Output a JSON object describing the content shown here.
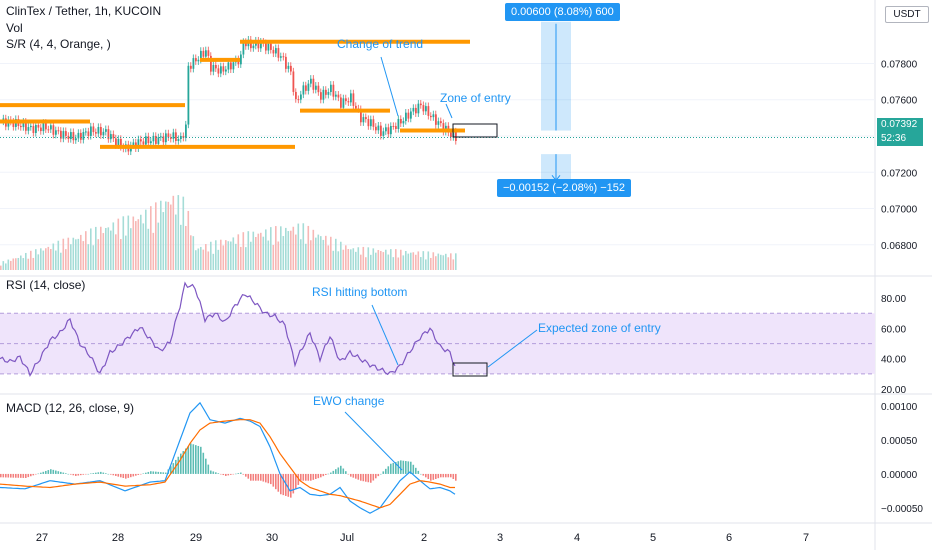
{
  "header": {
    "symbol": "ClinTex / Tether, 1h, KUCOIN",
    "vol": "Vol",
    "sr": "S/R (4, 4, Orange, )",
    "rsi": "RSI (14, close)",
    "macd": "MACD (12, 26, close, 9)"
  },
  "unit": "USDT",
  "price_tag": {
    "price": "0.07392",
    "countdown": "52:36"
  },
  "measure": {
    "up": "0.00600 (8.08%) 600",
    "down": "−0.00152 (−2.08%) −152"
  },
  "annotations": {
    "trend": "Change of trend",
    "entry": "Zone of entry",
    "rsi": "RSI hitting bottom",
    "expected": "Expected zone of entry",
    "ewo": "EWO change"
  },
  "colors": {
    "up": "#26a69a",
    "down": "#ef5350",
    "sr": "#ff9800",
    "rsi": "#7e57c2",
    "rsi_band": "#efe4fb",
    "macd": "#2196f3",
    "signal": "#ff6d00",
    "accent": "#2196f3"
  },
  "chart_data": [
    {
      "type": "candlestick",
      "title": "ClinTex / Tether, 1h, KUCOIN",
      "x_labels": [
        "27",
        "28",
        "29",
        "30",
        "Jul",
        "2",
        "3",
        "4",
        "5",
        "6",
        "7"
      ],
      "y_ticks": [
        "0.07800",
        "0.07600",
        "0.07400",
        "0.07200",
        "0.07000",
        "0.06800"
      ],
      "ylim": [
        0.0665,
        0.0815
      ],
      "last_price": 0.07392,
      "close_path": [
        [
          0,
          0.0748
        ],
        [
          6,
          0.0747
        ],
        [
          12,
          0.0744
        ],
        [
          18,
          0.0745
        ],
        [
          24,
          0.0741
        ],
        [
          30,
          0.0739
        ],
        [
          36,
          0.0743
        ],
        [
          42,
          0.0742
        ],
        [
          46,
          0.0737
        ],
        [
          50,
          0.0733
        ],
        [
          56,
          0.0737
        ],
        [
          62,
          0.0738
        ],
        [
          68,
          0.074
        ],
        [
          72,
          0.0738
        ],
        [
          74,
          0.0745
        ],
        [
          75,
          0.0778
        ],
        [
          78,
          0.0782
        ],
        [
          82,
          0.0787
        ],
        [
          84,
          0.0778
        ],
        [
          88,
          0.0776
        ],
        [
          92,
          0.0779
        ],
        [
          96,
          0.0783
        ],
        [
          97,
          0.0792
        ],
        [
          100,
          0.079
        ],
        [
          104,
          0.0791
        ],
        [
          108,
          0.0788
        ],
        [
          112,
          0.0784
        ],
        [
          116,
          0.0775
        ],
        [
          118,
          0.0758
        ],
        [
          120,
          0.0764
        ],
        [
          124,
          0.077
        ],
        [
          128,
          0.0762
        ],
        [
          132,
          0.0766
        ],
        [
          136,
          0.0758
        ],
        [
          140,
          0.0761
        ],
        [
          144,
          0.075
        ],
        [
          148,
          0.0747
        ],
        [
          152,
          0.0742
        ],
        [
          156,
          0.0744
        ],
        [
          160,
          0.0748
        ],
        [
          164,
          0.0753
        ],
        [
          168,
          0.0757
        ],
        [
          172,
          0.0751
        ],
        [
          176,
          0.0746
        ],
        [
          180,
          0.0741
        ],
        [
          182,
          0.0739
        ]
      ],
      "volume": [
        [
          0,
          1
        ],
        [
          60,
          8
        ],
        [
          68,
          10
        ],
        [
          74,
          9
        ],
        [
          78,
          3
        ],
        [
          100,
          5
        ],
        [
          120,
          6
        ],
        [
          140,
          3
        ],
        [
          186,
          2
        ]
      ],
      "sr_levels": [
        {
          "price": 0.0757,
          "x": [
            0,
            74
          ]
        },
        {
          "price": 0.0748,
          "x": [
            0,
            36
          ]
        },
        {
          "price": 0.0734,
          "x": [
            40,
            118
          ]
        },
        {
          "price": 0.0782,
          "x": [
            80,
            96
          ]
        },
        {
          "price": 0.0792,
          "x": [
            96,
            188
          ]
        },
        {
          "price": 0.0754,
          "x": [
            120,
            156
          ]
        },
        {
          "price": 0.0743,
          "x": [
            160,
            186
          ]
        }
      ],
      "measure_levels": {
        "up": [
          0.0743,
          0.0803
        ],
        "down": [
          0.073,
          0.0715
        ]
      }
    },
    {
      "type": "line",
      "title": "RSI (14, close)",
      "y_ticks": [
        "80.00",
        "60.00",
        "40.00",
        "20.00"
      ],
      "ylim": [
        18,
        92
      ],
      "band": [
        30,
        70
      ],
      "series": [
        {
          "values": [
            [
              0,
              40
            ],
            [
              4,
              38
            ],
            [
              8,
              41
            ],
            [
              12,
              30
            ],
            [
              16,
              40
            ],
            [
              20,
              52
            ],
            [
              24,
              57
            ],
            [
              28,
              66
            ],
            [
              32,
              50
            ],
            [
              36,
              42
            ],
            [
              40,
              30
            ],
            [
              44,
              44
            ],
            [
              48,
              49
            ],
            [
              52,
              55
            ],
            [
              56,
              61
            ],
            [
              60,
              53
            ],
            [
              64,
              45
            ],
            [
              68,
              51
            ],
            [
              72,
              75
            ],
            [
              74,
              89
            ],
            [
              78,
              87
            ],
            [
              82,
              66
            ],
            [
              86,
              70
            ],
            [
              90,
              64
            ],
            [
              94,
              75
            ],
            [
              98,
              83
            ],
            [
              102,
              77
            ],
            [
              106,
              70
            ],
            [
              110,
              68
            ],
            [
              114,
              62
            ],
            [
              118,
              37
            ],
            [
              120,
              44
            ],
            [
              124,
              57
            ],
            [
              128,
              40
            ],
            [
              132,
              55
            ],
            [
              136,
              38
            ],
            [
              140,
              44
            ],
            [
              144,
              40
            ],
            [
              148,
              36
            ],
            [
              152,
              33
            ],
            [
              156,
              30
            ],
            [
              160,
              35
            ],
            [
              164,
              45
            ],
            [
              168,
              54
            ],
            [
              172,
              60
            ],
            [
              176,
              48
            ],
            [
              180,
              44
            ],
            [
              182,
              35
            ]
          ]
        }
      ]
    },
    {
      "type": "bar",
      "title": "MACD (12, 26, close, 9)",
      "y_ticks": [
        "0.00100",
        "0.00050",
        "0.00000",
        "−0.00050"
      ],
      "ylim": [
        -0.00068,
        0.00115
      ],
      "series": [
        {
          "values": [
            [
              0,
              -0.0002
            ],
            [
              10,
              -0.00022
            ],
            [
              20,
              -0.0001
            ],
            [
              30,
              -0.00015
            ],
            [
              40,
              -0.0001
            ],
            [
              50,
              -0.00025
            ],
            [
              60,
              -0.00012
            ],
            [
              66,
              -0.0001
            ],
            [
              72,
              0.0005
            ],
            [
              76,
              0.0009
            ],
            [
              80,
              0.00105
            ],
            [
              84,
              0.0008
            ],
            [
              90,
              0.00075
            ],
            [
              96,
              0.00082
            ],
            [
              100,
              0.00078
            ],
            [
              104,
              0.0007
            ],
            [
              108,
              0.0004
            ],
            [
              112,
              0.0
            ],
            [
              116,
              -0.00025
            ],
            [
              120,
              -0.0002
            ],
            [
              124,
              -0.0003
            ],
            [
              128,
              -0.00032
            ],
            [
              132,
              -0.0003
            ],
            [
              136,
              -0.0002
            ],
            [
              140,
              -0.0004
            ],
            [
              144,
              -0.0005
            ],
            [
              148,
              -0.00058
            ],
            [
              152,
              -0.0005
            ],
            [
              156,
              -0.0003
            ],
            [
              160,
              -0.0001
            ],
            [
              164,
              3e-05
            ],
            [
              168,
              -0.0001
            ],
            [
              172,
              -0.00022
            ],
            [
              176,
              -0.0002
            ],
            [
              180,
              -0.00025
            ],
            [
              182,
              -0.0003
            ]
          ]
        },
        {
          "values": [
            [
              0,
              -0.00015
            ],
            [
              10,
              -0.00018
            ],
            [
              20,
              -0.0002
            ],
            [
              30,
              -0.00015
            ],
            [
              40,
              -0.00012
            ],
            [
              50,
              -0.00018
            ],
            [
              60,
              -0.00016
            ],
            [
              66,
              -0.00012
            ],
            [
              72,
              0.0002
            ],
            [
              76,
              0.00045
            ],
            [
              80,
              0.00065
            ],
            [
              84,
              0.00075
            ],
            [
              90,
              0.00078
            ],
            [
              96,
              0.0008
            ],
            [
              100,
              0.0008
            ],
            [
              104,
              0.00075
            ],
            [
              108,
              0.00055
            ],
            [
              112,
              0.0003
            ],
            [
              116,
              0.0001
            ],
            [
              120,
              -0.0001
            ],
            [
              124,
              -0.0002
            ],
            [
              128,
              -0.00025
            ],
            [
              132,
              -0.0003
            ],
            [
              136,
              -0.00032
            ],
            [
              140,
              -0.00036
            ],
            [
              144,
              -0.0004
            ],
            [
              148,
              -0.00045
            ],
            [
              152,
              -0.0005
            ],
            [
              156,
              -0.00045
            ],
            [
              160,
              -0.0003
            ],
            [
              164,
              -0.00015
            ],
            [
              168,
              -0.0001
            ],
            [
              172,
              -0.00012
            ],
            [
              176,
              -0.00015
            ],
            [
              180,
              -0.0002
            ],
            [
              182,
              -0.0002
            ]
          ]
        }
      ],
      "histogram": [
        [
          0,
          -5e-05
        ],
        [
          10,
          -6e-05
        ],
        [
          20,
          7e-05
        ],
        [
          30,
          -3e-05
        ],
        [
          40,
          3e-05
        ],
        [
          50,
          -7e-05
        ],
        [
          60,
          4e-05
        ],
        [
          66,
          2e-05
        ],
        [
          72,
          0.0003
        ],
        [
          76,
          0.00045
        ],
        [
          80,
          0.0004
        ],
        [
          84,
          5e-05
        ],
        [
          90,
          -3e-05
        ],
        [
          96,
          2e-05
        ],
        [
          100,
          -0.0001
        ],
        [
          104,
          -0.0001
        ],
        [
          108,
          -0.00015
        ],
        [
          112,
          -0.0003
        ],
        [
          116,
          -0.00035
        ],
        [
          120,
          -0.0001
        ],
        [
          124,
          -0.0001
        ],
        [
          128,
          -5e-05
        ],
        [
          132,
          2e-05
        ],
        [
          136,
          0.00012
        ],
        [
          140,
          -4e-05
        ],
        [
          144,
          -0.0001
        ],
        [
          148,
          -0.00013
        ],
        [
          152,
          0.0
        ],
        [
          156,
          0.00015
        ],
        [
          160,
          0.0002
        ],
        [
          164,
          0.00018
        ],
        [
          168,
          0.0
        ],
        [
          172,
          -0.0001
        ],
        [
          176,
          -5e-05
        ],
        [
          180,
          -5e-05
        ],
        [
          182,
          -0.0001
        ]
      ]
    }
  ]
}
